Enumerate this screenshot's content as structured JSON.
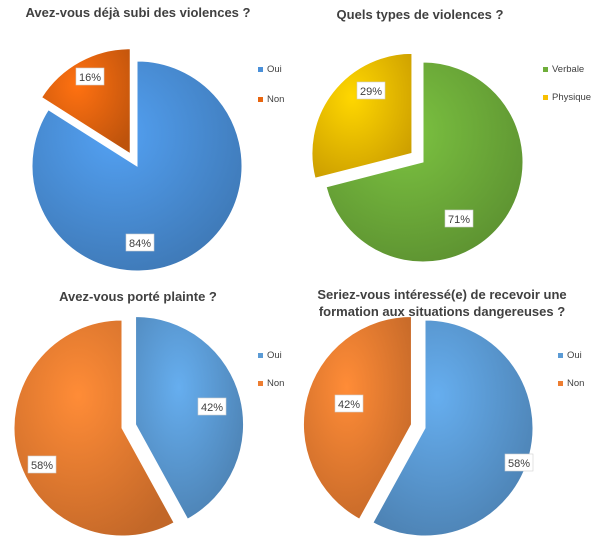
{
  "chart_data": [
    {
      "type": "pie",
      "title": "Avez-vous déjà subi des violences ?",
      "categories": [
        "Oui",
        "Non"
      ],
      "values": [
        84,
        16
      ],
      "labels": [
        "84%",
        "16%"
      ],
      "colors": [
        "#4A90D9",
        "#E8650F"
      ],
      "exploded": "Non",
      "legend_position": "right"
    },
    {
      "type": "pie",
      "title": "Quels types de violences ?",
      "categories": [
        "Verbale",
        "Physique"
      ],
      "values": [
        71,
        29
      ],
      "labels": [
        "71%",
        "29%"
      ],
      "colors": [
        "#6FAE3A",
        "#F8C000"
      ],
      "exploded": "Physique",
      "legend_position": "right"
    },
    {
      "type": "pie",
      "title": "Avez-vous porté plainte ?",
      "categories": [
        "Oui",
        "Non"
      ],
      "values": [
        42,
        58
      ],
      "labels": [
        "42%",
        "58%"
      ],
      "colors": [
        "#5B9BD5",
        "#ED7D31"
      ],
      "exploded": "Oui",
      "legend_position": "right"
    },
    {
      "type": "pie",
      "title": "Seriez-vous intéressé(e) de recevoir une formation aux situations dangereuses ?",
      "categories": [
        "Oui",
        "Non"
      ],
      "values": [
        58,
        42
      ],
      "labels": [
        "58%",
        "42%"
      ],
      "colors": [
        "#5B9BD5",
        "#ED7D31"
      ],
      "exploded": "Non",
      "legend_position": "right"
    }
  ]
}
